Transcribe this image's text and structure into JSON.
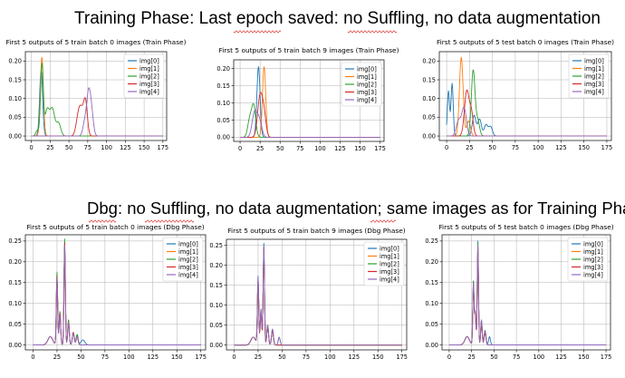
{
  "section_titles": {
    "top": "Training Phase: Last epoch saved: no Suffling, no data augmentation",
    "bottom": "Dbg: no Suffling, no data augmentation; same images as for Training Phase"
  },
  "series_names": [
    "img[0]",
    "img[1]",
    "img[2]",
    "img[3]",
    "img[4]"
  ],
  "series_colors": [
    "#1f77b4",
    "#ff7f0e",
    "#2ca02c",
    "#d62728",
    "#9467bd"
  ],
  "chart_data": [
    {
      "type": "line",
      "title": "First 5 outputs of 5 train batch 0 images (Train Phase)",
      "xlim": [
        -8,
        180
      ],
      "ylim": [
        -0.012,
        0.225
      ],
      "grid": true,
      "legend": "top-right",
      "xticks": [
        0,
        25,
        50,
        75,
        100,
        125,
        150,
        175
      ],
      "yticks": [
        0.0,
        0.05,
        0.1,
        0.15,
        0.2
      ],
      "ytick_labels": [
        "0.00",
        "0.05",
        "0.10",
        "0.15",
        "0.20"
      ],
      "series": [
        {
          "name": "img[0]",
          "peaks": [
            [
              13,
              0.175,
              2.0
            ]
          ]
        },
        {
          "name": "img[1]",
          "peaks": [
            [
              14,
              0.21,
              2.0
            ]
          ]
        },
        {
          "name": "img[2]",
          "peaks": [
            [
              14,
              0.19,
              1.8
            ],
            [
              21,
              0.07,
              3.0
            ],
            [
              28,
              0.07,
              3.0
            ],
            [
              36,
              0.035,
              3.0
            ],
            [
              8,
              0.015,
              2.0
            ]
          ]
        },
        {
          "name": "img[3]",
          "peaks": [
            [
              66,
              0.065,
              3.5
            ],
            [
              72,
              0.085,
              2.5
            ],
            [
              62,
              0.03,
              3.0
            ]
          ]
        },
        {
          "name": "img[4]",
          "peaks": [
            [
              76,
              0.105,
              2.5
            ],
            [
              80,
              0.06,
              2.5
            ],
            [
              71,
              0.035,
              2.5
            ]
          ]
        }
      ]
    },
    {
      "type": "line",
      "title": "First 5 outputs of 5 train batch 9 images (Train Phase)",
      "xlim": [
        -8,
        180
      ],
      "ylim": [
        -0.012,
        0.225
      ],
      "grid": true,
      "legend": "top-right",
      "xticks": [
        0,
        25,
        50,
        75,
        100,
        125,
        150,
        175
      ],
      "yticks": [
        0.0,
        0.05,
        0.1,
        0.15,
        0.2
      ],
      "ytick_labels": [
        "0.00",
        "0.05",
        "0.10",
        "0.15",
        "0.20"
      ],
      "series": [
        {
          "name": "img[0]",
          "peaks": [
            [
              23,
              0.205,
              2.0
            ]
          ]
        },
        {
          "name": "img[1]",
          "peaks": [
            [
              30,
              0.205,
              2.0
            ]
          ]
        },
        {
          "name": "img[2]",
          "peaks": [
            [
              17,
              0.09,
              2.5
            ],
            [
              12,
              0.05,
              2.5
            ]
          ]
        },
        {
          "name": "img[3]",
          "peaks": [
            [
              25,
              0.12,
              3.0
            ],
            [
              30,
              0.06,
              2.5
            ]
          ]
        },
        {
          "name": "img[4]",
          "peaks": [
            [
              18,
              0.07,
              3.0
            ],
            [
              24,
              0.05,
              3.0
            ]
          ]
        }
      ]
    },
    {
      "type": "line",
      "title": "First 5 outputs of 5 test batch 0 images (Train Phase)",
      "xlim": [
        -8,
        180
      ],
      "ylim": [
        -0.012,
        0.225
      ],
      "grid": true,
      "legend": "top-right",
      "xticks": [
        0,
        25,
        50,
        75,
        100,
        125,
        150,
        175
      ],
      "yticks": [
        0.0,
        0.05,
        0.1,
        0.15,
        0.2
      ],
      "ytick_labels": [
        "0.00",
        "0.05",
        "0.10",
        "0.15",
        "0.20"
      ],
      "series": [
        {
          "name": "img[0]",
          "peaks": [
            [
              2,
              0.12,
              1.2
            ],
            [
              6,
              0.14,
              1.2
            ],
            [
              30,
              0.055,
              2.0
            ],
            [
              36,
              0.045,
              2.0
            ],
            [
              43,
              0.03,
              2.0
            ],
            [
              48,
              0.025,
              2.0
            ]
          ]
        },
        {
          "name": "img[1]",
          "peaks": [
            [
              16,
              0.21,
              2.0
            ],
            [
              24,
              0.04,
              2.0
            ]
          ]
        },
        {
          "name": "img[2]",
          "peaks": [
            [
              29,
              0.175,
              2.0
            ],
            [
              34,
              0.04,
              2.0
            ]
          ]
        },
        {
          "name": "img[3]",
          "peaks": [
            [
              22,
              0.12,
              2.5
            ],
            [
              27,
              0.06,
              2.0
            ]
          ]
        },
        {
          "name": "img[4]",
          "peaks": [
            [
              19,
              0.075,
              2.5
            ],
            [
              13,
              0.04,
              2.5
            ]
          ]
        }
      ]
    },
    {
      "type": "line",
      "title": "First 5 outputs of 5 train batch 0 images (Dbg Phase)",
      "xlim": [
        -8,
        180
      ],
      "ylim": [
        -0.012,
        0.265
      ],
      "grid": true,
      "legend": "top-right",
      "xticks": [
        0,
        25,
        50,
        75,
        100,
        125,
        150,
        175
      ],
      "yticks": [
        0.0,
        0.05,
        0.1,
        0.15,
        0.2,
        0.25
      ],
      "ytick_labels": [
        "0.00",
        "0.05",
        "0.10",
        "0.15",
        "0.20",
        "0.25"
      ],
      "series": [
        {
          "name": "img[0]",
          "peaks": [
            [
              25,
              0.17,
              0.7
            ],
            [
              33,
              0.25,
              0.7
            ],
            [
              28,
              0.08,
              0.8
            ],
            [
              37,
              0.06,
              0.8
            ],
            [
              42,
              0.03,
              1.0
            ],
            [
              46,
              0.025,
              1.0
            ],
            [
              18,
              0.02,
              2.5
            ],
            [
              52,
              0.012,
              2.0
            ]
          ]
        },
        {
          "name": "img[1]",
          "peaks": [
            [
              25,
              0.16,
              0.7
            ],
            [
              33,
              0.24,
              0.7
            ],
            [
              28,
              0.07,
              0.8
            ],
            [
              37,
              0.06,
              0.8
            ],
            [
              42,
              0.03,
              1.0
            ],
            [
              46,
              0.02,
              1.0
            ],
            [
              18,
              0.02,
              2.5
            ]
          ]
        },
        {
          "name": "img[2]",
          "peaks": [
            [
              25,
              0.175,
              0.7
            ],
            [
              33,
              0.255,
              0.7
            ],
            [
              28,
              0.08,
              0.8
            ],
            [
              37,
              0.06,
              0.8
            ],
            [
              42,
              0.03,
              1.0
            ],
            [
              46,
              0.025,
              1.0
            ],
            [
              18,
              0.02,
              2.5
            ]
          ]
        },
        {
          "name": "img[3]",
          "peaks": [
            [
              25,
              0.165,
              0.7
            ],
            [
              33,
              0.245,
              0.7
            ],
            [
              28,
              0.075,
              0.8
            ],
            [
              37,
              0.055,
              0.8
            ],
            [
              42,
              0.03,
              1.0
            ],
            [
              46,
              0.02,
              1.0
            ],
            [
              18,
              0.02,
              2.5
            ]
          ]
        },
        {
          "name": "img[4]",
          "peaks": [
            [
              25,
              0.16,
              0.7
            ],
            [
              33,
              0.24,
              0.7
            ],
            [
              28,
              0.07,
              0.8
            ],
            [
              37,
              0.055,
              0.8
            ],
            [
              42,
              0.028,
              1.0
            ],
            [
              46,
              0.02,
              1.0
            ],
            [
              18,
              0.02,
              2.5
            ]
          ]
        }
      ]
    },
    {
      "type": "line",
      "title": "First 5 outputs of 5 train batch 9 images (Dbg Phase)",
      "xlim": [
        -8,
        180
      ],
      "ylim": [
        -0.012,
        0.265
      ],
      "grid": true,
      "legend": "top-right",
      "xticks": [
        0,
        25,
        50,
        75,
        100,
        125,
        150,
        175
      ],
      "yticks": [
        0.0,
        0.05,
        0.1,
        0.15,
        0.2,
        0.25
      ],
      "ytick_labels": [
        "0.00",
        "0.05",
        "0.10",
        "0.15",
        "0.20",
        "0.25"
      ],
      "series": [
        {
          "name": "img[0]",
          "peaks": [
            [
              25,
              0.17,
              0.7
            ],
            [
              31,
              0.255,
              0.7
            ],
            [
              28,
              0.09,
              0.8
            ],
            [
              35,
              0.05,
              0.9
            ],
            [
              40,
              0.04,
              1.0
            ],
            [
              47,
              0.02,
              1.0
            ],
            [
              20,
              0.02,
              2.5
            ]
          ]
        },
        {
          "name": "img[1]",
          "peaks": [
            [
              25,
              0.16,
              0.7
            ],
            [
              31,
              0.24,
              0.7
            ],
            [
              28,
              0.08,
              0.8
            ],
            [
              35,
              0.05,
              0.9
            ],
            [
              40,
              0.035,
              1.0
            ],
            [
              20,
              0.02,
              2.5
            ]
          ]
        },
        {
          "name": "img[2]",
          "peaks": [
            [
              25,
              0.165,
              0.7
            ],
            [
              31,
              0.245,
              0.7
            ],
            [
              28,
              0.085,
              0.8
            ],
            [
              35,
              0.05,
              0.9
            ],
            [
              40,
              0.035,
              1.0
            ],
            [
              20,
              0.02,
              2.5
            ]
          ]
        },
        {
          "name": "img[3]",
          "peaks": [
            [
              25,
              0.16,
              0.7
            ],
            [
              31,
              0.24,
              0.7
            ],
            [
              28,
              0.08,
              0.8
            ],
            [
              35,
              0.045,
              0.9
            ],
            [
              40,
              0.035,
              1.0
            ],
            [
              20,
              0.02,
              2.5
            ]
          ]
        },
        {
          "name": "img[4]",
          "peaks": [
            [
              25,
              0.17,
              0.7
            ],
            [
              31,
              0.25,
              0.7
            ],
            [
              28,
              0.09,
              0.8
            ],
            [
              35,
              0.05,
              0.9
            ],
            [
              40,
              0.04,
              1.0
            ],
            [
              47,
              0.02,
              1.0
            ],
            [
              20,
              0.02,
              2.5
            ]
          ]
        }
      ]
    },
    {
      "type": "line",
      "title": "First 5 outputs of 5 test batch 0 images (Dbg Phase)",
      "xlim": [
        -8,
        180
      ],
      "ylim": [
        -0.012,
        0.265
      ],
      "grid": true,
      "legend": "top-right",
      "xticks": [
        0,
        25,
        50,
        75,
        100,
        125,
        150,
        175
      ],
      "yticks": [
        0.0,
        0.05,
        0.1,
        0.15,
        0.2,
        0.25
      ],
      "ytick_labels": [
        "0.00",
        "0.05",
        "0.10",
        "0.15",
        "0.20",
        "0.25"
      ],
      "series": [
        {
          "name": "img[0]",
          "peaks": [
            [
              27,
              0.15,
              0.7
            ],
            [
              32,
              0.25,
              0.7
            ],
            [
              29,
              0.08,
              0.8
            ],
            [
              36,
              0.06,
              0.8
            ],
            [
              40,
              0.035,
              1.0
            ],
            [
              45,
              0.02,
              1.0
            ],
            [
              20,
              0.02,
              2.5
            ]
          ]
        },
        {
          "name": "img[1]",
          "peaks": [
            [
              27,
              0.14,
              0.7
            ],
            [
              32,
              0.24,
              0.7
            ],
            [
              29,
              0.075,
              0.8
            ],
            [
              36,
              0.055,
              0.8
            ],
            [
              40,
              0.03,
              1.0
            ],
            [
              20,
              0.02,
              2.5
            ]
          ]
        },
        {
          "name": "img[2]",
          "peaks": [
            [
              27,
              0.15,
              0.7
            ],
            [
              32,
              0.245,
              0.7
            ],
            [
              29,
              0.08,
              0.8
            ],
            [
              36,
              0.06,
              0.8
            ],
            [
              40,
              0.035,
              1.0
            ],
            [
              20,
              0.02,
              2.5
            ]
          ]
        },
        {
          "name": "img[3]",
          "peaks": [
            [
              27,
              0.14,
              0.7
            ],
            [
              32,
              0.235,
              0.7
            ],
            [
              29,
              0.075,
              0.8
            ],
            [
              36,
              0.055,
              0.8
            ],
            [
              40,
              0.03,
              1.0
            ],
            [
              20,
              0.02,
              2.5
            ]
          ]
        },
        {
          "name": "img[4]",
          "peaks": [
            [
              27,
              0.145,
              0.7
            ],
            [
              32,
              0.24,
              0.7
            ],
            [
              29,
              0.08,
              0.8
            ],
            [
              36,
              0.06,
              0.8
            ],
            [
              40,
              0.035,
              1.0
            ],
            [
              20,
              0.02,
              2.5
            ]
          ]
        }
      ]
    }
  ]
}
